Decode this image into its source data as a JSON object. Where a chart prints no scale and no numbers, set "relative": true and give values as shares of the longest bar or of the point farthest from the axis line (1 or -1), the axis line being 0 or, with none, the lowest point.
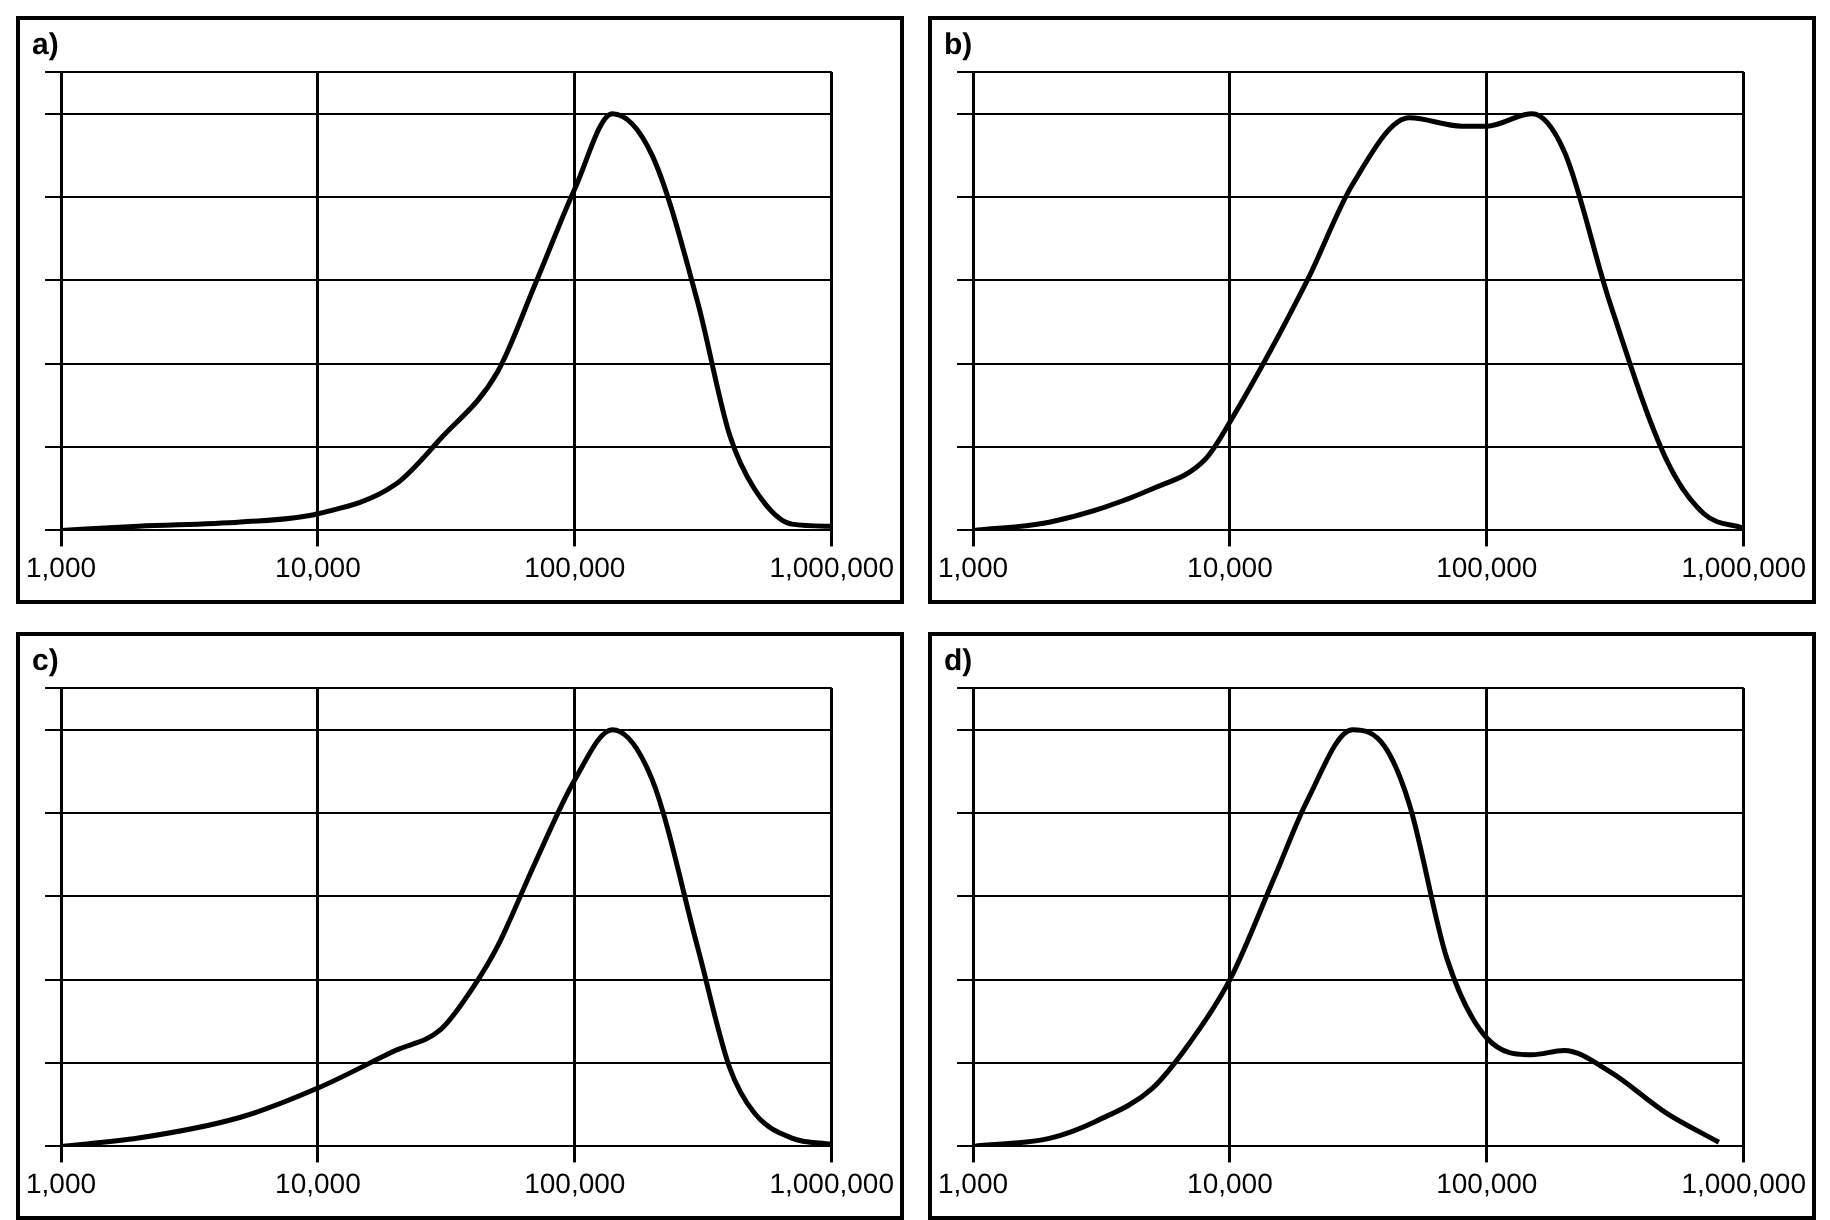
{
  "chart_data": [
    {
      "type": "line",
      "title": "a)",
      "relative": true,
      "log": "x",
      "grid": true,
      "marker": "none",
      "line_style": "solid",
      "xlim": [
        1000,
        1000000
      ],
      "xticks": [
        {
          "value": 1000,
          "label": "1,000"
        },
        {
          "value": 10000,
          "label": "10,000"
        },
        {
          "value": 100000,
          "label": "100,000"
        },
        {
          "value": 1000000,
          "label": "1,000,000"
        }
      ],
      "x": [
        1000,
        2000,
        5000,
        10000,
        20000,
        30000,
        50000,
        70000,
        100000,
        140000,
        200000,
        300000,
        400000,
        500000,
        700000,
        1000000
      ],
      "series": [
        {
          "color": "#000000",
          "values": [
            0,
            0.01,
            0.02,
            0.04,
            0.11,
            0.22,
            0.38,
            0.59,
            0.82,
            1,
            0.9,
            0.55,
            0.23,
            0.1,
            0.015,
            0.01
          ]
        }
      ]
    },
    {
      "type": "line",
      "title": "b)",
      "relative": true,
      "log": "x",
      "grid": true,
      "marker": "none",
      "line_style": "solid",
      "xlim": [
        1000,
        1000000
      ],
      "xticks": [
        {
          "value": 1000,
          "label": "1,000"
        },
        {
          "value": 10000,
          "label": "10,000"
        },
        {
          "value": 100000,
          "label": "100,000"
        },
        {
          "value": 1000000,
          "label": "1,000,000"
        }
      ],
      "x": [
        1000,
        2000,
        5000,
        8000,
        10000,
        20000,
        30000,
        50000,
        80000,
        100000,
        150000,
        200000,
        300000,
        500000,
        700000,
        1000000
      ],
      "series": [
        {
          "color": "#000000",
          "values": [
            0,
            0.02,
            0.1,
            0.17,
            0.26,
            0.6,
            0.83,
            0.99,
            0.97,
            0.97,
            1,
            0.91,
            0.55,
            0.17,
            0.04,
            0.005
          ]
        }
      ]
    },
    {
      "type": "line",
      "title": "c)",
      "relative": true,
      "log": "x",
      "grid": true,
      "marker": "none",
      "line_style": "solid",
      "xlim": [
        1000,
        1000000
      ],
      "xticks": [
        {
          "value": 1000,
          "label": "1,000"
        },
        {
          "value": 10000,
          "label": "10,000"
        },
        {
          "value": 100000,
          "label": "100,000"
        },
        {
          "value": 1000000,
          "label": "1,000,000"
        }
      ],
      "x": [
        1000,
        2000,
        5000,
        10000,
        20000,
        30000,
        40000,
        50000,
        70000,
        100000,
        140000,
        200000,
        300000,
        400000,
        500000,
        700000,
        1000000
      ],
      "series": [
        {
          "color": "#000000",
          "values": [
            0,
            0.02,
            0.07,
            0.14,
            0.23,
            0.28,
            0.38,
            0.48,
            0.68,
            0.88,
            1,
            0.88,
            0.48,
            0.19,
            0.08,
            0.02,
            0.005
          ]
        }
      ]
    },
    {
      "type": "line",
      "title": "d)",
      "relative": true,
      "log": "x",
      "grid": true,
      "marker": "none",
      "line_style": "solid",
      "xlim": [
        1000,
        1000000
      ],
      "xticks": [
        {
          "value": 1000,
          "label": "1,000"
        },
        {
          "value": 10000,
          "label": "10,000"
        },
        {
          "value": 100000,
          "label": "100,000"
        },
        {
          "value": 1000000,
          "label": "1,000,000"
        }
      ],
      "x": [
        1000,
        2000,
        3000,
        5000,
        7000,
        10000,
        15000,
        20000,
        30000,
        40000,
        50000,
        70000,
        100000,
        150000,
        200000,
        300000,
        500000,
        800000
      ],
      "series": [
        {
          "color": "#000000",
          "values": [
            0,
            0.02,
            0.06,
            0.14,
            0.25,
            0.4,
            0.65,
            0.83,
            1,
            0.96,
            0.82,
            0.45,
            0.26,
            0.22,
            0.23,
            0.18,
            0.08,
            0.01
          ]
        }
      ]
    }
  ]
}
